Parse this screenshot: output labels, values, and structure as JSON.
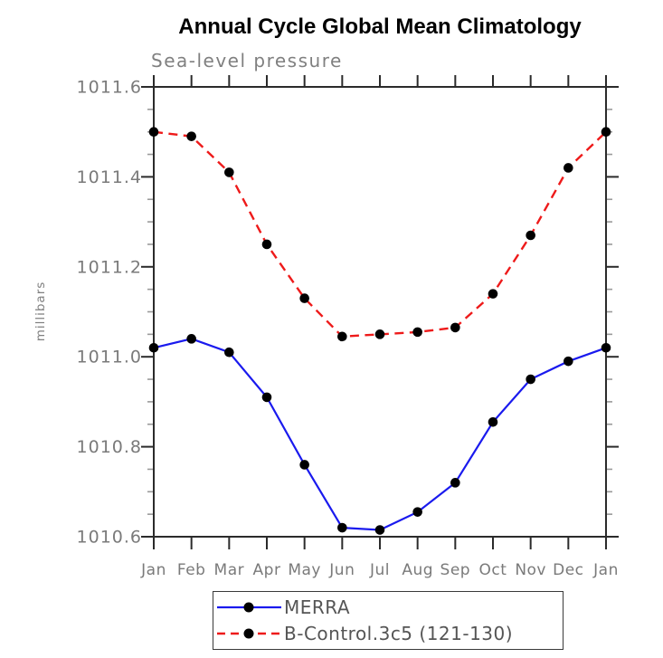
{
  "header": {
    "title": "Annual Cycle Global Mean Climatology",
    "subtitle": "Sea-level pressure"
  },
  "chart_data": {
    "type": "line",
    "title": "Annual Cycle Global Mean Climatology",
    "subtitle": "Sea-level pressure",
    "xlabel": "",
    "ylabel": "millibars",
    "categories": [
      "Jan",
      "Feb",
      "Mar",
      "Apr",
      "May",
      "Jun",
      "Jul",
      "Aug",
      "Sep",
      "Oct",
      "Nov",
      "Dec",
      "Jan"
    ],
    "ylim": [
      1010.6,
      1011.6
    ],
    "yticks": [
      1011.6,
      1011.4,
      1011.2,
      1011.0,
      1010.8,
      1010.6
    ],
    "ytick_labels": [
      "1011.6",
      "1011.4",
      "1011.2",
      "1011.0",
      "1010.8",
      "1010.6"
    ],
    "minor_tick_step": 0.05,
    "grid": false,
    "legend_position": "bottom",
    "series": [
      {
        "name": "MERRA",
        "color": "#1a1aee",
        "style": "solid",
        "marker": "circle",
        "marker_color": "#000000",
        "values": [
          1011.02,
          1011.04,
          1011.01,
          1010.91,
          1010.76,
          1010.62,
          1010.615,
          1010.655,
          1010.72,
          1010.855,
          1010.95,
          1010.99,
          1011.02
        ]
      },
      {
        "name": "B-Control.3c5 (121-130)",
        "color": "#ee1a1a",
        "style": "dashed",
        "marker": "circle",
        "marker_color": "#000000",
        "values": [
          1011.5,
          1011.49,
          1011.41,
          1011.25,
          1011.13,
          1011.045,
          1011.05,
          1011.055,
          1011.065,
          1011.14,
          1011.27,
          1011.42,
          1011.5
        ]
      }
    ],
    "axis_color": "#2b2b2b",
    "minor_tick_color": "#9a9a9a"
  }
}
